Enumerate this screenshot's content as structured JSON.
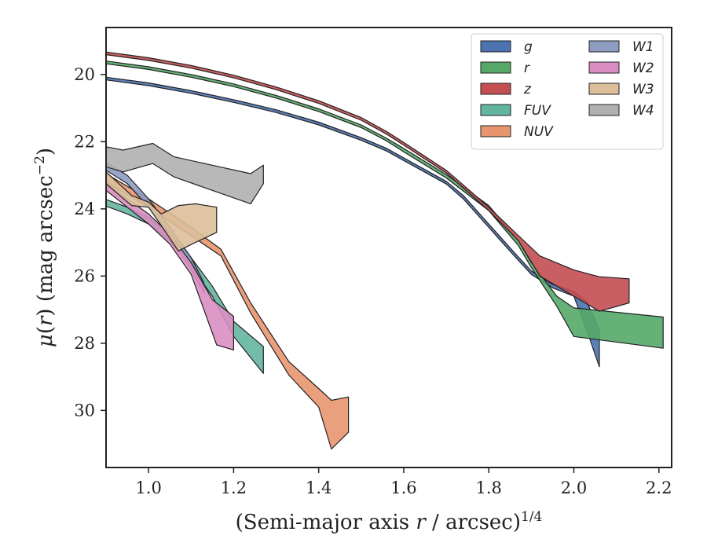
{
  "chart_data": {
    "type": "area",
    "xlabel": "(Semi-major axis r / arcsec)^{1/4}",
    "ylabel": "μ(r) (mag arcsec^{−2})",
    "xlim": [
      0.9,
      2.23
    ],
    "ylim": [
      31.7,
      18.6
    ],
    "y_inverted": true,
    "xticks": [
      1.0,
      1.2,
      1.4,
      1.6,
      1.8,
      2.0,
      2.2
    ],
    "yticks": [
      20,
      22,
      24,
      26,
      28,
      30
    ],
    "xtick_labels": [
      "1.0",
      "1.2",
      "1.4",
      "1.6",
      "1.8",
      "2.0",
      "2.2"
    ],
    "ytick_labels": [
      "20",
      "22",
      "24",
      "26",
      "28",
      "30"
    ],
    "grid": false,
    "legend_position": "top-right",
    "legend_columns": 2,
    "series": [
      {
        "name": "g",
        "color": "#4c72b0",
        "upper": [
          [
            0.9,
            20.08
          ],
          [
            1.0,
            20.25
          ],
          [
            1.1,
            20.48
          ],
          [
            1.2,
            20.75
          ],
          [
            1.3,
            21.05
          ],
          [
            1.4,
            21.42
          ],
          [
            1.5,
            21.88
          ],
          [
            1.56,
            22.2
          ],
          [
            1.6,
            22.48
          ],
          [
            1.7,
            23.18
          ],
          [
            1.74,
            23.6
          ],
          [
            1.8,
            24.45
          ],
          [
            1.86,
            25.3
          ],
          [
            1.9,
            25.85
          ],
          [
            1.95,
            26.25
          ],
          [
            2.0,
            26.45
          ],
          [
            2.03,
            26.75
          ],
          [
            2.06,
            27.6
          ]
        ],
        "lower": [
          [
            0.9,
            20.16
          ],
          [
            1.0,
            20.33
          ],
          [
            1.1,
            20.56
          ],
          [
            1.2,
            20.83
          ],
          [
            1.3,
            21.13
          ],
          [
            1.4,
            21.5
          ],
          [
            1.5,
            21.96
          ],
          [
            1.56,
            22.28
          ],
          [
            1.6,
            22.56
          ],
          [
            1.7,
            23.26
          ],
          [
            1.74,
            23.7
          ],
          [
            1.8,
            24.55
          ],
          [
            1.86,
            25.4
          ],
          [
            1.9,
            25.95
          ],
          [
            1.95,
            26.35
          ],
          [
            2.0,
            26.6
          ],
          [
            2.03,
            27.6
          ],
          [
            2.06,
            28.7
          ]
        ]
      },
      {
        "name": "r",
        "color": "#55a868",
        "upper": [
          [
            0.9,
            19.6
          ],
          [
            1.0,
            19.77
          ],
          [
            1.1,
            20.0
          ],
          [
            1.2,
            20.28
          ],
          [
            1.3,
            20.62
          ],
          [
            1.4,
            21.02
          ],
          [
            1.5,
            21.5
          ],
          [
            1.56,
            21.9
          ],
          [
            1.6,
            22.2
          ],
          [
            1.7,
            22.98
          ],
          [
            1.8,
            23.9
          ],
          [
            1.87,
            24.95
          ],
          [
            1.9,
            25.6
          ],
          [
            1.96,
            26.6
          ],
          [
            2.0,
            26.95
          ],
          [
            2.21,
            27.22
          ]
        ],
        "lower": [
          [
            0.9,
            19.68
          ],
          [
            1.0,
            19.85
          ],
          [
            1.1,
            20.08
          ],
          [
            1.2,
            20.36
          ],
          [
            1.3,
            20.7
          ],
          [
            1.4,
            21.1
          ],
          [
            1.5,
            21.58
          ],
          [
            1.56,
            21.98
          ],
          [
            1.6,
            22.3
          ],
          [
            1.7,
            23.08
          ],
          [
            1.8,
            24.05
          ],
          [
            1.87,
            25.1
          ],
          [
            1.9,
            25.75
          ],
          [
            1.96,
            26.9
          ],
          [
            2.0,
            27.8
          ],
          [
            2.21,
            28.15
          ]
        ]
      },
      {
        "name": "z",
        "color": "#c44e52",
        "upper": [
          [
            0.9,
            19.33
          ],
          [
            1.0,
            19.5
          ],
          [
            1.1,
            19.73
          ],
          [
            1.2,
            20.02
          ],
          [
            1.3,
            20.37
          ],
          [
            1.4,
            20.78
          ],
          [
            1.5,
            21.28
          ],
          [
            1.56,
            21.7
          ],
          [
            1.6,
            22.02
          ],
          [
            1.7,
            22.85
          ],
          [
            1.8,
            23.95
          ],
          [
            1.87,
            24.8
          ],
          [
            1.92,
            25.4
          ],
          [
            2.0,
            25.82
          ],
          [
            2.06,
            26.02
          ],
          [
            2.13,
            26.08
          ]
        ],
        "lower": [
          [
            0.9,
            19.41
          ],
          [
            1.0,
            19.58
          ],
          [
            1.1,
            19.81
          ],
          [
            1.2,
            20.1
          ],
          [
            1.3,
            20.45
          ],
          [
            1.4,
            20.86
          ],
          [
            1.5,
            21.36
          ],
          [
            1.56,
            21.78
          ],
          [
            1.6,
            22.1
          ],
          [
            1.7,
            22.93
          ],
          [
            1.8,
            24.05
          ],
          [
            1.87,
            24.95
          ],
          [
            1.92,
            26.0
          ],
          [
            2.0,
            26.6
          ],
          [
            2.06,
            27.05
          ],
          [
            2.13,
            26.8
          ]
        ]
      },
      {
        "name": "FUV",
        "color": "#64b5a0",
        "upper": [
          [
            0.9,
            23.72
          ],
          [
            0.95,
            23.95
          ],
          [
            1.0,
            24.25
          ],
          [
            1.05,
            24.75
          ],
          [
            1.1,
            25.45
          ],
          [
            1.15,
            26.3
          ],
          [
            1.2,
            27.35
          ],
          [
            1.27,
            28.1
          ]
        ],
        "lower": [
          [
            0.9,
            23.92
          ],
          [
            0.95,
            24.15
          ],
          [
            1.0,
            24.45
          ],
          [
            1.05,
            24.95
          ],
          [
            1.1,
            25.7
          ],
          [
            1.15,
            26.6
          ],
          [
            1.2,
            27.8
          ],
          [
            1.27,
            28.9
          ]
        ]
      },
      {
        "name": "NUV",
        "color": "#e8956f",
        "upper": [
          [
            0.9,
            22.95
          ],
          [
            1.0,
            23.7
          ],
          [
            1.1,
            24.55
          ],
          [
            1.17,
            25.2
          ],
          [
            1.24,
            26.8
          ],
          [
            1.33,
            28.55
          ],
          [
            1.4,
            29.35
          ],
          [
            1.43,
            29.7
          ],
          [
            1.47,
            29.6
          ]
        ],
        "lower": [
          [
            0.9,
            23.2
          ],
          [
            1.0,
            23.95
          ],
          [
            1.1,
            24.8
          ],
          [
            1.17,
            25.4
          ],
          [
            1.24,
            27.1
          ],
          [
            1.33,
            28.95
          ],
          [
            1.4,
            29.9
          ],
          [
            1.43,
            31.15
          ],
          [
            1.47,
            30.65
          ]
        ]
      },
      {
        "name": "W1",
        "color": "#8e9cc2",
        "upper": [
          [
            0.9,
            22.62
          ],
          [
            0.95,
            23.0
          ],
          [
            1.0,
            23.7
          ],
          [
            1.05,
            24.55
          ],
          [
            1.1,
            25.45
          ],
          [
            1.13,
            26.2
          ]
        ],
        "lower": [
          [
            0.9,
            22.85
          ],
          [
            0.95,
            23.25
          ],
          [
            1.0,
            23.95
          ],
          [
            1.05,
            24.85
          ],
          [
            1.1,
            25.8
          ],
          [
            1.13,
            26.5
          ]
        ]
      },
      {
        "name": "W2",
        "color": "#d98ec1",
        "upper": [
          [
            0.9,
            23.2
          ],
          [
            0.95,
            23.7
          ],
          [
            1.0,
            24.15
          ],
          [
            1.05,
            24.75
          ],
          [
            1.1,
            25.6
          ],
          [
            1.15,
            26.7
          ],
          [
            1.2,
            27.2
          ]
        ],
        "lower": [
          [
            0.9,
            23.45
          ],
          [
            0.95,
            23.95
          ],
          [
            1.0,
            24.45
          ],
          [
            1.05,
            25.05
          ],
          [
            1.1,
            25.95
          ],
          [
            1.16,
            28.05
          ],
          [
            1.2,
            28.2
          ]
        ]
      },
      {
        "name": "W3",
        "color": "#dcbf9a",
        "upper": [
          [
            0.9,
            22.9
          ],
          [
            0.96,
            23.6
          ],
          [
            1.0,
            23.8
          ],
          [
            1.03,
            24.15
          ],
          [
            1.07,
            23.9
          ],
          [
            1.11,
            23.85
          ],
          [
            1.16,
            23.95
          ]
        ],
        "lower": [
          [
            0.9,
            23.25
          ],
          [
            0.96,
            23.9
          ],
          [
            1.0,
            23.95
          ],
          [
            1.03,
            24.5
          ],
          [
            1.07,
            25.25
          ],
          [
            1.11,
            25.0
          ],
          [
            1.16,
            24.7
          ]
        ]
      },
      {
        "name": "W4",
        "color": "#b0b0b0",
        "upper": [
          [
            0.9,
            22.15
          ],
          [
            0.94,
            22.25
          ],
          [
            1.01,
            22.05
          ],
          [
            1.06,
            22.45
          ],
          [
            1.15,
            22.7
          ],
          [
            1.24,
            22.95
          ],
          [
            1.27,
            22.7
          ]
        ],
        "lower": [
          [
            0.9,
            22.75
          ],
          [
            0.94,
            22.9
          ],
          [
            1.01,
            22.65
          ],
          [
            1.06,
            23.05
          ],
          [
            1.15,
            23.45
          ],
          [
            1.24,
            23.85
          ],
          [
            1.27,
            23.25
          ]
        ]
      }
    ]
  }
}
